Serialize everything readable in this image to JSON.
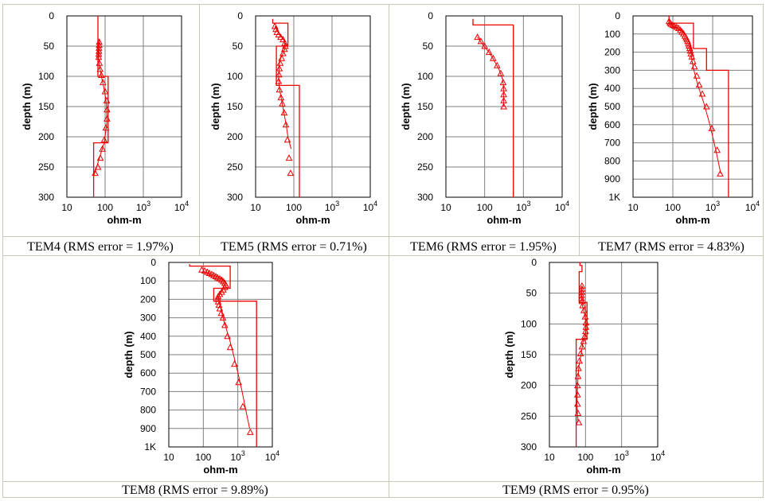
{
  "chart_data": [
    {
      "id": "tem4",
      "type": "line",
      "caption": "TEM4 (RMS error = 1.97%)",
      "xlabel": "ohm-m",
      "ylabel": "depth (m)",
      "xscale": "log",
      "xlim": [
        10,
        10000
      ],
      "xticks": [
        "10",
        "100",
        "10^3",
        "10^4"
      ],
      "ylim": [
        300,
        0
      ],
      "yticks": [
        "0",
        "50",
        "100",
        "150",
        "200",
        "250",
        "300"
      ],
      "model": [
        [
          65,
          0
        ],
        [
          65,
          100
        ],
        [
          120,
          100
        ],
        [
          120,
          210
        ],
        [
          50,
          210
        ],
        [
          50,
          300
        ]
      ],
      "fit": [
        [
          70,
          40
        ],
        [
          69,
          55
        ],
        [
          68,
          70
        ],
        [
          72,
          85
        ],
        [
          80,
          100
        ],
        [
          90,
          115
        ],
        [
          100,
          130
        ],
        [
          110,
          150
        ],
        [
          110,
          180
        ],
        [
          95,
          210
        ],
        [
          75,
          230
        ],
        [
          60,
          250
        ],
        [
          50,
          265
        ]
      ],
      "observed": [
        [
          70,
          43
        ],
        [
          70,
          48
        ],
        [
          69,
          53
        ],
        [
          69,
          58
        ],
        [
          68,
          63
        ],
        [
          68,
          68
        ],
        [
          71,
          78
        ],
        [
          74,
          88
        ],
        [
          80,
          98
        ],
        [
          88,
          110
        ],
        [
          100,
          125
        ],
        [
          110,
          140
        ],
        [
          112,
          155
        ],
        [
          112,
          170
        ],
        [
          105,
          185
        ],
        [
          95,
          205
        ],
        [
          85,
          220
        ],
        [
          75,
          235
        ],
        [
          65,
          250
        ],
        [
          55,
          260
        ]
      ]
    },
    {
      "id": "tem5",
      "type": "line",
      "caption": "TEM5 (RMS error = 0.71%)",
      "xlabel": "ohm-m",
      "ylabel": "depth (m)",
      "xscale": "log",
      "xlim": [
        10,
        10000
      ],
      "xticks": [
        "10",
        "100",
        "10^3",
        "10^4"
      ],
      "ylim": [
        300,
        0
      ],
      "yticks": [
        "0",
        "50",
        "100",
        "150",
        "200",
        "250",
        "300"
      ],
      "model": [
        [
          28,
          5
        ],
        [
          28,
          12
        ],
        [
          70,
          12
        ],
        [
          70,
          50
        ],
        [
          35,
          50
        ],
        [
          35,
          115
        ],
        [
          140,
          115
        ],
        [
          140,
          300
        ]
      ],
      "fit": [
        [
          32,
          17
        ],
        [
          40,
          28
        ],
        [
          55,
          40
        ],
        [
          60,
          50
        ],
        [
          55,
          60
        ],
        [
          45,
          70
        ],
        [
          42,
          80
        ],
        [
          40,
          100
        ],
        [
          42,
          120
        ],
        [
          48,
          140
        ],
        [
          55,
          160
        ],
        [
          63,
          180
        ],
        [
          70,
          200
        ],
        [
          85,
          220
        ]
      ],
      "observed": [
        [
          32,
          17
        ],
        [
          34,
          22
        ],
        [
          36,
          27
        ],
        [
          40,
          31
        ],
        [
          45,
          35
        ],
        [
          52,
          39
        ],
        [
          58,
          45
        ],
        [
          60,
          50
        ],
        [
          57,
          55
        ],
        [
          52,
          62
        ],
        [
          48,
          70
        ],
        [
          44,
          78
        ],
        [
          42,
          87
        ],
        [
          41,
          97
        ],
        [
          40,
          108
        ],
        [
          42,
          122
        ],
        [
          46,
          135
        ],
        [
          50,
          145
        ],
        [
          56,
          160
        ],
        [
          62,
          180
        ],
        [
          68,
          205
        ],
        [
          75,
          235
        ],
        [
          82,
          260
        ]
      ]
    },
    {
      "id": "tem6",
      "type": "line",
      "caption": "TEM6 (RMS error = 1.95%)",
      "xlabel": "ohm-m",
      "ylabel": "depth (m)",
      "xscale": "log",
      "xlim": [
        10,
        10000
      ],
      "xticks": [
        "10",
        "100",
        "10^3",
        "10^4"
      ],
      "ylim": [
        300,
        0
      ],
      "yticks": [
        "0",
        "50",
        "100",
        "150",
        "200",
        "250",
        "300"
      ],
      "model": [
        [
          50,
          5
        ],
        [
          50,
          15
        ],
        [
          550,
          15
        ],
        [
          550,
          300
        ]
      ],
      "fit": [
        [
          65,
          35
        ],
        [
          90,
          48
        ],
        [
          130,
          60
        ],
        [
          180,
          75
        ],
        [
          240,
          90
        ],
        [
          290,
          105
        ],
        [
          310,
          120
        ],
        [
          310,
          150
        ]
      ],
      "observed": [
        [
          65,
          35
        ],
        [
          80,
          42
        ],
        [
          100,
          50
        ],
        [
          130,
          60
        ],
        [
          165,
          70
        ],
        [
          210,
          82
        ],
        [
          260,
          95
        ],
        [
          300,
          110
        ],
        [
          310,
          120
        ],
        [
          310,
          130
        ],
        [
          310,
          140
        ],
        [
          310,
          150
        ]
      ]
    },
    {
      "id": "tem7",
      "type": "line",
      "caption": "TEM7 (RMS error = 4.83%)",
      "xlabel": "ohm-m",
      "ylabel": "depth (m)",
      "xscale": "log",
      "xlim": [
        10,
        10000
      ],
      "xticks": [
        "10",
        "100",
        "10^3",
        "10^4"
      ],
      "ylim": [
        1000,
        0
      ],
      "yticks": [
        "0",
        "100",
        "200",
        "300",
        "400",
        "500",
        "600",
        "700",
        "800",
        "900",
        "1K"
      ],
      "model": [
        [
          80,
          0
        ],
        [
          80,
          40
        ],
        [
          330,
          40
        ],
        [
          330,
          180
        ],
        [
          700,
          180
        ],
        [
          700,
          300
        ],
        [
          2500,
          300
        ],
        [
          2500,
          1000
        ]
      ],
      "fit": [
        [
          80,
          40
        ],
        [
          110,
          60
        ],
        [
          160,
          80
        ],
        [
          220,
          110
        ],
        [
          260,
          150
        ],
        [
          280,
          200
        ],
        [
          320,
          280
        ],
        [
          420,
          380
        ],
        [
          600,
          480
        ],
        [
          850,
          600
        ],
        [
          1200,
          740
        ],
        [
          1600,
          870
        ]
      ],
      "observed": [
        [
          80,
          30
        ],
        [
          85,
          38
        ],
        [
          90,
          45
        ],
        [
          100,
          50
        ],
        [
          110,
          55
        ],
        [
          125,
          62
        ],
        [
          140,
          68
        ],
        [
          155,
          78
        ],
        [
          170,
          88
        ],
        [
          185,
          98
        ],
        [
          200,
          110
        ],
        [
          215,
          120
        ],
        [
          225,
          130
        ],
        [
          235,
          140
        ],
        [
          245,
          152
        ],
        [
          255,
          165
        ],
        [
          265,
          178
        ],
        [
          275,
          192
        ],
        [
          285,
          208
        ],
        [
          300,
          225
        ],
        [
          320,
          250
        ],
        [
          350,
          280
        ],
        [
          400,
          330
        ],
        [
          460,
          380
        ],
        [
          550,
          430
        ],
        [
          700,
          500
        ],
        [
          950,
          620
        ],
        [
          1300,
          740
        ],
        [
          1550,
          870
        ]
      ]
    },
    {
      "id": "tem8",
      "type": "line",
      "caption": "TEM8 (RMS error = 9.89%)",
      "xlabel": "ohm-m",
      "ylabel": "depth (m)",
      "xscale": "log",
      "xlim": [
        10,
        10000
      ],
      "xticks": [
        "10",
        "100",
        "10^3",
        "10^4"
      ],
      "ylim": [
        1000,
        0
      ],
      "yticks": [
        "0",
        "100",
        "200",
        "300",
        "400",
        "500",
        "600",
        "700",
        "800",
        "900",
        "1K"
      ],
      "model": [
        [
          40,
          10
        ],
        [
          40,
          20
        ],
        [
          600,
          20
        ],
        [
          600,
          140
        ],
        [
          200,
          140
        ],
        [
          200,
          210
        ],
        [
          3500,
          210
        ],
        [
          3500,
          1000
        ]
      ],
      "fit": [
        [
          100,
          50
        ],
        [
          200,
          70
        ],
        [
          350,
          90
        ],
        [
          450,
          110
        ],
        [
          350,
          150
        ],
        [
          270,
          190
        ],
        [
          300,
          230
        ],
        [
          400,
          320
        ],
        [
          600,
          430
        ],
        [
          900,
          560
        ],
        [
          1300,
          690
        ],
        [
          1700,
          800
        ],
        [
          2200,
          900
        ]
      ],
      "observed": [
        [
          90,
          40
        ],
        [
          110,
          45
        ],
        [
          130,
          52
        ],
        [
          150,
          58
        ],
        [
          175,
          64
        ],
        [
          200,
          70
        ],
        [
          230,
          76
        ],
        [
          260,
          82
        ],
        [
          300,
          88
        ],
        [
          340,
          95
        ],
        [
          380,
          103
        ],
        [
          420,
          112
        ],
        [
          450,
          122
        ],
        [
          420,
          135
        ],
        [
          380,
          148
        ],
        [
          340,
          160
        ],
        [
          300,
          172
        ],
        [
          270,
          185
        ],
        [
          265,
          198
        ],
        [
          270,
          212
        ],
        [
          285,
          230
        ],
        [
          300,
          250
        ],
        [
          330,
          275
        ],
        [
          370,
          300
        ],
        [
          420,
          340
        ],
        [
          500,
          400
        ],
        [
          600,
          460
        ],
        [
          800,
          550
        ],
        [
          1050,
          650
        ],
        [
          1400,
          780
        ],
        [
          2300,
          920
        ]
      ]
    },
    {
      "id": "tem9",
      "type": "line",
      "caption": "TEM9 (RMS error = 0.95%)",
      "xlabel": "ohm-m",
      "ylabel": "depth (m)",
      "xscale": "log",
      "xlim": [
        10,
        10000
      ],
      "xticks": [
        "10",
        "100",
        "10^3",
        "10^4"
      ],
      "ylim": [
        300,
        0
      ],
      "yticks": [
        "0",
        "50",
        "100",
        "150",
        "200",
        "250",
        "300"
      ],
      "model": [
        [
          70,
          0
        ],
        [
          70,
          5
        ],
        [
          80,
          5
        ],
        [
          80,
          15
        ],
        [
          67,
          15
        ],
        [
          67,
          65
        ],
        [
          110,
          65
        ],
        [
          110,
          125
        ],
        [
          55,
          125
        ],
        [
          55,
          300
        ]
      ],
      "fit": [
        [
          80,
          40
        ],
        [
          78,
          55
        ],
        [
          82,
          70
        ],
        [
          95,
          85
        ],
        [
          103,
          100
        ],
        [
          100,
          115
        ],
        [
          85,
          130
        ],
        [
          75,
          150
        ],
        [
          65,
          170
        ],
        [
          60,
          200
        ],
        [
          58,
          230
        ],
        [
          62,
          260
        ]
      ],
      "observed": [
        [
          80,
          38
        ],
        [
          80,
          43
        ],
        [
          79,
          48
        ],
        [
          78,
          53
        ],
        [
          78,
          58
        ],
        [
          80,
          63
        ],
        [
          83,
          70
        ],
        [
          90,
          78
        ],
        [
          98,
          88
        ],
        [
          103,
          98
        ],
        [
          103,
          105
        ],
        [
          100,
          112
        ],
        [
          95,
          120
        ],
        [
          88,
          128
        ],
        [
          80,
          137
        ],
        [
          73,
          148
        ],
        [
          68,
          160
        ],
        [
          64,
          172
        ],
        [
          62,
          185
        ],
        [
          60,
          200
        ],
        [
          60,
          215
        ],
        [
          60,
          230
        ],
        [
          62,
          245
        ],
        [
          65,
          260
        ]
      ]
    }
  ]
}
